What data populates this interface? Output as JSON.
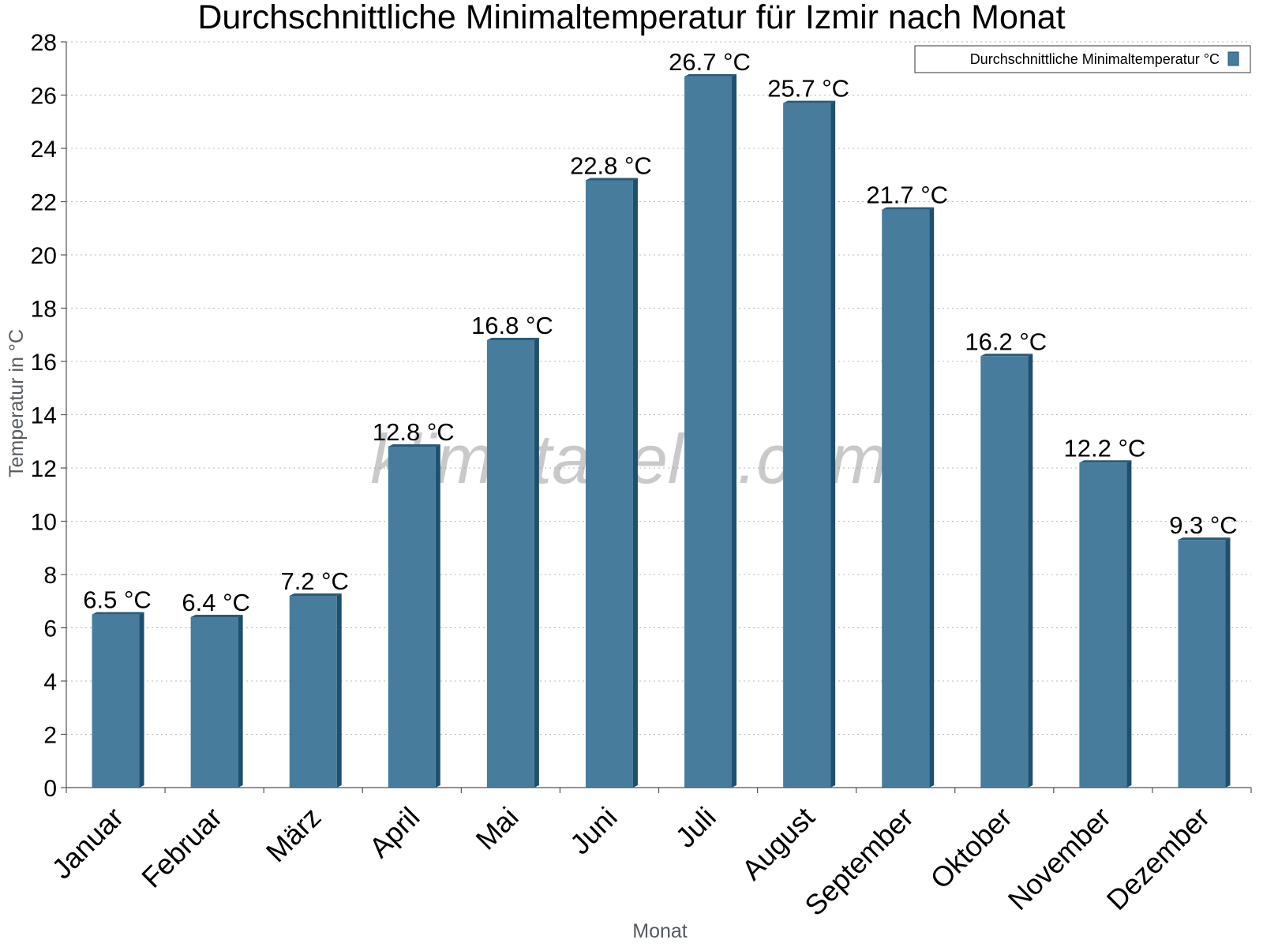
{
  "chart_data": {
    "type": "bar",
    "title": "Durchschnittliche Minimaltemperatur für Izmir nach Monat",
    "xlabel": "Monat",
    "ylabel": "Temperatur in °C",
    "categories": [
      "Januar",
      "Februar",
      "März",
      "April",
      "Mai",
      "Juni",
      "Juli",
      "August",
      "September",
      "Oktober",
      "November",
      "Dezember"
    ],
    "series": [
      {
        "name": "Durchschnittliche Minimaltemperatur °C",
        "values": [
          6.5,
          6.4,
          7.2,
          12.8,
          16.8,
          22.8,
          26.7,
          25.7,
          21.7,
          16.2,
          12.2,
          9.3
        ],
        "color": "#477c9d"
      }
    ],
    "data_labels": [
      "6.5 °C",
      "6.4 °C",
      "7.2 °C",
      "12.8 °C",
      "16.8 °C",
      "22.8 °C",
      "26.7 °C",
      "25.7 °C",
      "21.7 °C",
      "16.2 °C",
      "12.2 °C",
      "9.3 °C"
    ],
    "ylim": [
      0,
      28
    ],
    "yticks": [
      0,
      2,
      4,
      6,
      8,
      10,
      12,
      14,
      16,
      18,
      20,
      22,
      24,
      26,
      28
    ],
    "grid": true,
    "legend_position": "top-right",
    "watermark": "klimatabelle.com"
  },
  "colors": {
    "bar_face": "#477c9d",
    "bar_side": "#1e4f6e",
    "bar_top": "#2a5a78"
  }
}
